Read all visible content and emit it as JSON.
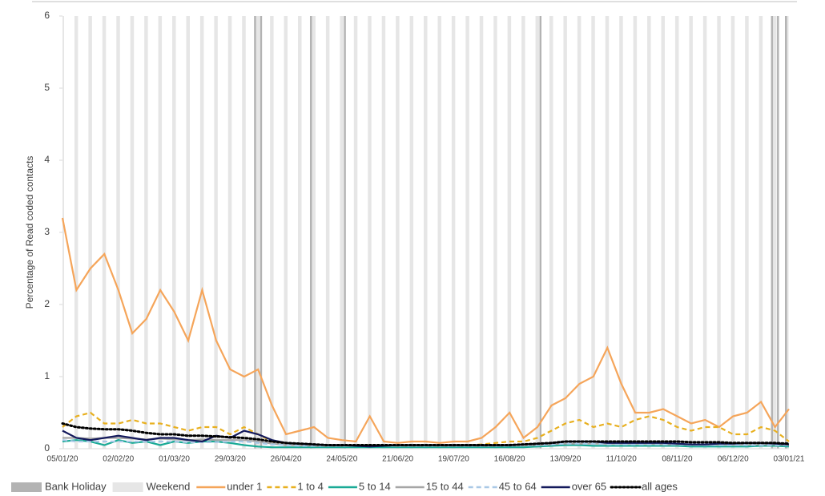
{
  "chart_data": {
    "type": "line",
    "ylabel": "Percentage of Read coded contacts",
    "categories": [
      "05/01/20",
      null,
      null,
      null,
      "02/02/20",
      null,
      null,
      null,
      "01/03/20",
      null,
      null,
      null,
      "29/03/20",
      null,
      null,
      null,
      "26/04/20",
      null,
      null,
      null,
      "24/05/20",
      null,
      null,
      null,
      "21/06/20",
      null,
      null,
      null,
      "19/07/20",
      null,
      null,
      null,
      "16/08/20",
      null,
      null,
      null,
      "13/09/20",
      null,
      null,
      null,
      "11/10/20",
      null,
      null,
      null,
      "08/11/20",
      null,
      null,
      null,
      "06/12/20",
      null,
      null,
      null,
      "03/01/21"
    ],
    "ylim": [
      0,
      6
    ],
    "yticks": [
      0,
      1,
      2,
      3,
      4,
      5,
      6
    ],
    "bands": [
      {
        "name": "Bank Holiday",
        "color": "#b3b3b3"
      },
      {
        "name": "Weekend",
        "color": "#e6e6e6"
      }
    ],
    "series": [
      {
        "name": "under 1",
        "color": "#f5a55a",
        "dash": "solid",
        "values": [
          3.2,
          2.2,
          2.5,
          2.7,
          2.2,
          1.6,
          1.8,
          2.2,
          1.9,
          1.5,
          2.2,
          1.5,
          1.1,
          1.0,
          1.1,
          0.6,
          0.2,
          0.25,
          0.3,
          0.15,
          0.12,
          0.1,
          0.45,
          0.1,
          0.08,
          0.1,
          0.1,
          0.08,
          0.1,
          0.1,
          0.15,
          0.3,
          0.5,
          0.15,
          0.3,
          0.6,
          0.7,
          0.9,
          1.0,
          1.4,
          0.9,
          0.5,
          0.5,
          0.55,
          0.45,
          0.35,
          0.4,
          0.3,
          0.45,
          0.5,
          0.65,
          0.3,
          0.55
        ]
      },
      {
        "name": "1 to 4",
        "color": "#e8b020",
        "dash": "dashed",
        "values": [
          0.3,
          0.45,
          0.5,
          0.35,
          0.35,
          0.4,
          0.35,
          0.35,
          0.3,
          0.25,
          0.3,
          0.3,
          0.2,
          0.3,
          0.2,
          0.1,
          0.08,
          0.05,
          0.05,
          0.05,
          0.04,
          0.04,
          0.05,
          0.04,
          0.04,
          0.04,
          0.05,
          0.05,
          0.05,
          0.05,
          0.06,
          0.08,
          0.1,
          0.1,
          0.15,
          0.25,
          0.35,
          0.4,
          0.3,
          0.35,
          0.3,
          0.4,
          0.45,
          0.4,
          0.3,
          0.25,
          0.3,
          0.3,
          0.2,
          0.2,
          0.3,
          0.25,
          0.1
        ]
      },
      {
        "name": "5 to 14",
        "color": "#1aaa96",
        "dash": "solid",
        "values": [
          0.1,
          0.12,
          0.1,
          0.05,
          0.12,
          0.08,
          0.1,
          0.05,
          0.1,
          0.08,
          0.1,
          0.1,
          0.08,
          0.05,
          0.03,
          0.02,
          0.02,
          0.02,
          0.02,
          0.02,
          0.02,
          0.02,
          0.02,
          0.02,
          0.02,
          0.02,
          0.02,
          0.02,
          0.02,
          0.02,
          0.02,
          0.02,
          0.02,
          0.02,
          0.03,
          0.04,
          0.05,
          0.05,
          0.04,
          0.04,
          0.04,
          0.04,
          0.04,
          0.04,
          0.04,
          0.03,
          0.03,
          0.03,
          0.03,
          0.03,
          0.04,
          0.04,
          0.03
        ]
      },
      {
        "name": "15 to 44",
        "color": "#a6a6a6",
        "dash": "solid",
        "values": [
          0.15,
          0.15,
          0.14,
          0.15,
          0.15,
          0.14,
          0.13,
          0.14,
          0.13,
          0.12,
          0.13,
          0.12,
          0.12,
          0.12,
          0.1,
          0.07,
          0.05,
          0.05,
          0.04,
          0.04,
          0.04,
          0.04,
          0.04,
          0.04,
          0.04,
          0.04,
          0.04,
          0.04,
          0.04,
          0.04,
          0.04,
          0.04,
          0.05,
          0.05,
          0.05,
          0.06,
          0.07,
          0.07,
          0.07,
          0.07,
          0.07,
          0.07,
          0.07,
          0.06,
          0.06,
          0.06,
          0.06,
          0.06,
          0.06,
          0.06,
          0.06,
          0.06,
          0.05
        ]
      },
      {
        "name": "45 to 64",
        "color": "#a9c8e6",
        "dash": "dashed",
        "values": [
          0.12,
          0.1,
          0.1,
          0.1,
          0.1,
          0.1,
          0.1,
          0.1,
          0.1,
          0.09,
          0.09,
          0.09,
          0.1,
          0.1,
          0.08,
          0.06,
          0.05,
          0.04,
          0.04,
          0.04,
          0.04,
          0.04,
          0.04,
          0.04,
          0.04,
          0.04,
          0.04,
          0.04,
          0.04,
          0.04,
          0.04,
          0.04,
          0.04,
          0.05,
          0.05,
          0.06,
          0.07,
          0.07,
          0.07,
          0.06,
          0.06,
          0.06,
          0.06,
          0.06,
          0.06,
          0.05,
          0.05,
          0.05,
          0.05,
          0.05,
          0.05,
          0.05,
          0.05
        ]
      },
      {
        "name": "over 65",
        "color": "#141a5c",
        "dash": "solid",
        "values": [
          0.25,
          0.15,
          0.12,
          0.15,
          0.18,
          0.15,
          0.12,
          0.15,
          0.15,
          0.12,
          0.1,
          0.18,
          0.15,
          0.25,
          0.2,
          0.12,
          0.08,
          0.07,
          0.06,
          0.05,
          0.05,
          0.04,
          0.03,
          0.04,
          0.05,
          0.05,
          0.05,
          0.05,
          0.05,
          0.05,
          0.05,
          0.05,
          0.05,
          0.06,
          0.07,
          0.08,
          0.1,
          0.1,
          0.1,
          0.08,
          0.08,
          0.08,
          0.08,
          0.08,
          0.07,
          0.06,
          0.06,
          0.07,
          0.07,
          0.08,
          0.08,
          0.07,
          0.06
        ]
      },
      {
        "name": "all ages",
        "color": "#000000",
        "dash": "dotted",
        "values": [
          0.35,
          0.3,
          0.28,
          0.27,
          0.27,
          0.25,
          0.22,
          0.2,
          0.2,
          0.18,
          0.18,
          0.17,
          0.16,
          0.15,
          0.13,
          0.1,
          0.08,
          0.07,
          0.06,
          0.05,
          0.05,
          0.05,
          0.05,
          0.05,
          0.05,
          0.05,
          0.05,
          0.05,
          0.05,
          0.05,
          0.05,
          0.05,
          0.05,
          0.06,
          0.07,
          0.08,
          0.1,
          0.1,
          0.1,
          0.1,
          0.1,
          0.1,
          0.1,
          0.1,
          0.1,
          0.09,
          0.09,
          0.09,
          0.08,
          0.08,
          0.08,
          0.08,
          0.07
        ]
      }
    ]
  }
}
